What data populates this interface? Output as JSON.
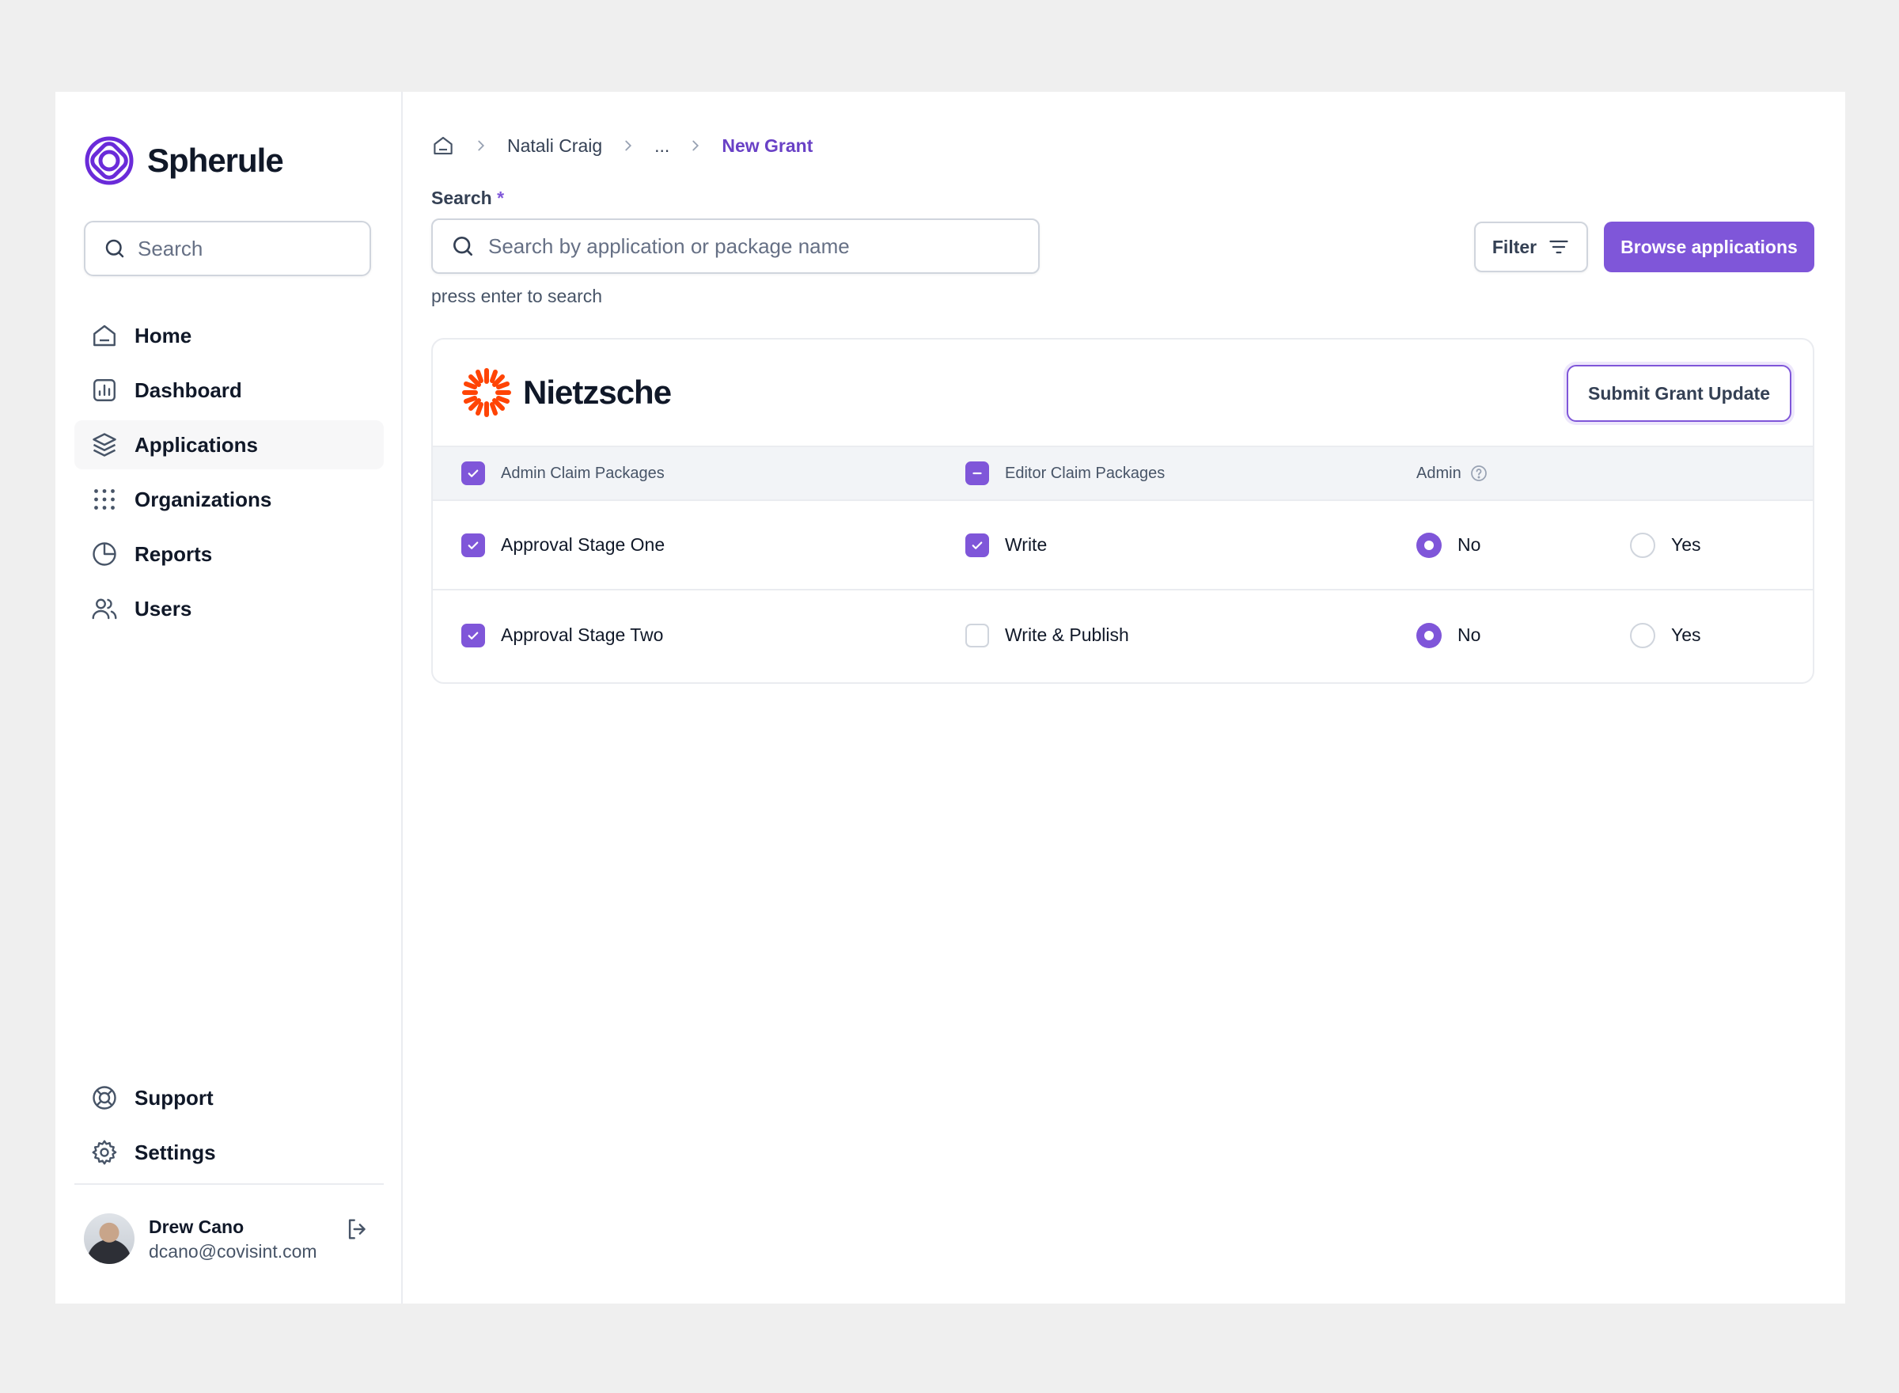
{
  "brand": {
    "name": "Spherule",
    "accent": "#7f56d9",
    "logo_icon": "spherule-logo-icon"
  },
  "sidebar": {
    "search_placeholder": "Search",
    "items": [
      {
        "label": "Home",
        "icon": "home-icon"
      },
      {
        "label": "Dashboard",
        "icon": "bar-chart-icon"
      },
      {
        "label": "Applications",
        "icon": "layers-icon",
        "active": true
      },
      {
        "label": "Organizations",
        "icon": "grid-dots-icon"
      },
      {
        "label": "Reports",
        "icon": "pie-chart-icon"
      },
      {
        "label": "Users",
        "icon": "users-icon"
      }
    ],
    "bottom_items": [
      {
        "label": "Support",
        "icon": "life-buoy-icon"
      },
      {
        "label": "Settings",
        "icon": "gear-icon"
      }
    ],
    "user": {
      "name": "Drew Cano",
      "email": "dcano@covisint.com"
    }
  },
  "breadcrumb": {
    "items": [
      "Natali Craig",
      "..."
    ],
    "current": "New Grant"
  },
  "search": {
    "label": "Search",
    "required_mark": "*",
    "placeholder": "Search by application or package name",
    "hint": "press enter to search"
  },
  "toolbar": {
    "filter_label": "Filter",
    "browse_label": "Browse applications"
  },
  "card": {
    "org_name": "Nietzsche",
    "org_logo_color": "#ff4405",
    "submit_label": "Submit Grant Update",
    "headers": {
      "admin_claim": "Admin Claim Packages",
      "editor_claim": "Editor Claim Packages",
      "admin": "Admin"
    },
    "rows": [
      {
        "admin_package": "Approval Stage One",
        "admin_checked": true,
        "editor_package": "Write",
        "editor_checked": true,
        "admin_value": "No",
        "options": [
          "No",
          "Yes"
        ]
      },
      {
        "admin_package": "Approval Stage Two",
        "admin_checked": true,
        "editor_package": "Write & Publish",
        "editor_checked": false,
        "admin_value": "No",
        "options": [
          "No",
          "Yes"
        ]
      }
    ]
  }
}
